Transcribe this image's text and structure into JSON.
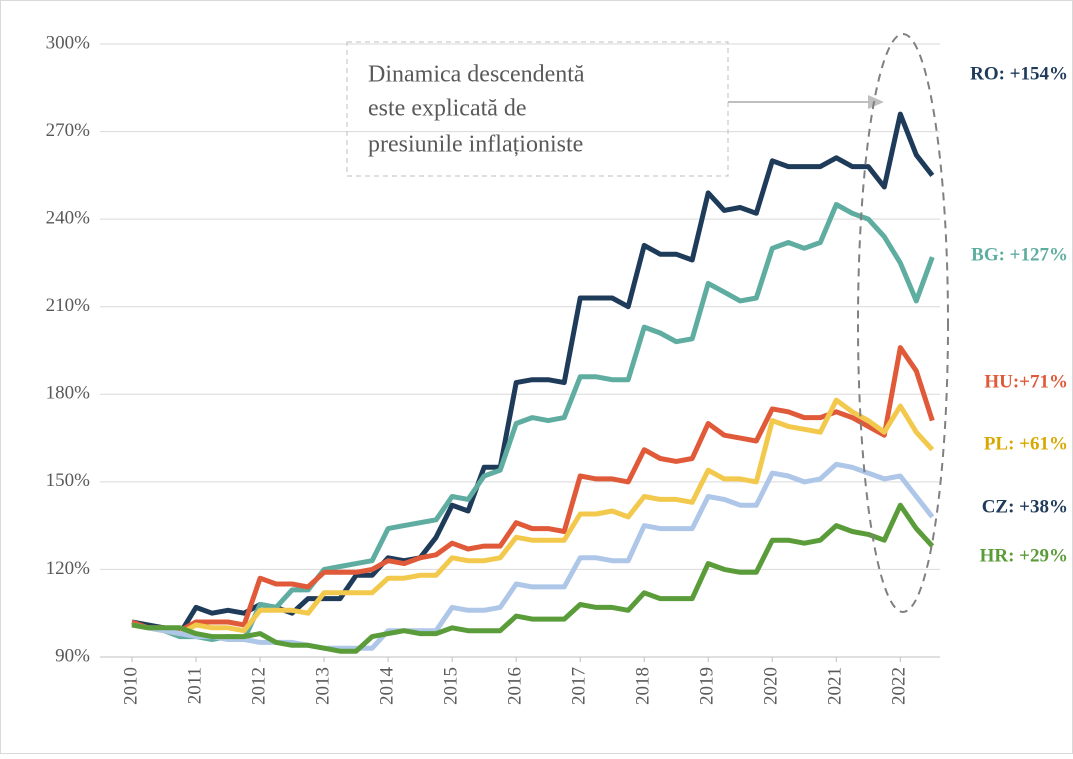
{
  "chart_data": {
    "type": "line",
    "annotation": [
      "Dinamica descendentă",
      "este explicată de",
      "presiunile inflaționiste"
    ],
    "x": [
      2010,
      2010.25,
      2010.5,
      2010.75,
      2011,
      2011.25,
      2011.5,
      2011.75,
      2012,
      2012.25,
      2012.5,
      2012.75,
      2013,
      2013.25,
      2013.5,
      2013.75,
      2014,
      2014.25,
      2014.5,
      2014.75,
      2015,
      2015.25,
      2015.5,
      2015.75,
      2016,
      2016.25,
      2016.5,
      2016.75,
      2017,
      2017.25,
      2017.5,
      2017.75,
      2018,
      2018.25,
      2018.5,
      2018.75,
      2019,
      2019.25,
      2019.5,
      2019.75,
      2020,
      2020.25,
      2020.5,
      2020.75,
      2021,
      2021.25,
      2021.5,
      2021.75,
      2022,
      2022.25,
      2022.5
    ],
    "xlim": [
      2009.5,
      2022.62
    ],
    "xticks": [
      2010,
      2011,
      2012,
      2013,
      2014,
      2015,
      2016,
      2017,
      2018,
      2019,
      2020,
      2021,
      2022
    ],
    "ylim": [
      90,
      300
    ],
    "yticks": [
      {
        "value": 90,
        "label": "90%"
      },
      {
        "value": 120,
        "label": "120%"
      },
      {
        "value": 150,
        "label": "150%"
      },
      {
        "value": 180,
        "label": "180%"
      },
      {
        "value": 210,
        "label": "210%"
      },
      {
        "value": 240,
        "label": "240%"
      },
      {
        "value": 270,
        "label": "270%"
      },
      {
        "value": 300,
        "label": "300%"
      }
    ],
    "grid": true,
    "series": [
      {
        "name": "RO",
        "label": "RO: +154%",
        "color": "#1f3b5a",
        "label_color": "#1f3b5a",
        "values": [
          102,
          101,
          100,
          98,
          107,
          105,
          106,
          105,
          108,
          107,
          105,
          110,
          110,
          110,
          118,
          118,
          124,
          123,
          124,
          131,
          142,
          140,
          155,
          155,
          184,
          185,
          185,
          184,
          213,
          213,
          213,
          210,
          231,
          228,
          228,
          226,
          249,
          243,
          244,
          242,
          260,
          258,
          258,
          258,
          261,
          258,
          258,
          251,
          276,
          262,
          255
        ]
      },
      {
        "name": "BG",
        "label": "BG: +127%",
        "color": "#5fada0",
        "label_color": "#5fada0",
        "values": [
          101,
          100,
          99,
          97,
          97,
          96,
          97,
          96,
          108,
          107,
          113,
          113,
          120,
          121,
          122,
          123,
          134,
          135,
          136,
          137,
          145,
          144,
          152,
          154,
          170,
          172,
          171,
          172,
          186,
          186,
          185,
          185,
          203,
          201,
          198,
          199,
          218,
          215,
          212,
          213,
          230,
          232,
          230,
          232,
          245,
          242,
          240,
          234,
          225,
          212,
          227
        ]
      },
      {
        "name": "HU",
        "label": "HU:+71%",
        "color": "#e05a3a",
        "label_color": "#e05a3a",
        "values": [
          102,
          100,
          100,
          99,
          102,
          102,
          102,
          101,
          117,
          115,
          115,
          114,
          119,
          119,
          119,
          120,
          123,
          122,
          124,
          125,
          129,
          127,
          128,
          128,
          136,
          134,
          134,
          133,
          152,
          151,
          151,
          150,
          161,
          158,
          157,
          158,
          170,
          166,
          165,
          164,
          175,
          174,
          172,
          172,
          174,
          172,
          169,
          166,
          196,
          188,
          171
        ]
      },
      {
        "name": "PL",
        "label": "PL: +61%",
        "color": "#f2c94c",
        "label_color": "#d9a800",
        "values": [
          101,
          100,
          99,
          98,
          101,
          100,
          100,
          99,
          106,
          106,
          106,
          105,
          112,
          112,
          112,
          112,
          117,
          117,
          118,
          118,
          124,
          123,
          123,
          124,
          131,
          130,
          130,
          130,
          139,
          139,
          140,
          138,
          145,
          144,
          144,
          143,
          154,
          151,
          151,
          150,
          171,
          169,
          168,
          167,
          178,
          174,
          171,
          167,
          176,
          167,
          161
        ]
      },
      {
        "name": "CZ",
        "label": "CZ: +38%",
        "color": "#aec6e8",
        "label_color": "#1f3b5a",
        "values": [
          101,
          100,
          99,
          98,
          97,
          97,
          96,
          96,
          95,
          95,
          95,
          94,
          93,
          93,
          93,
          93,
          99,
          99,
          99,
          99,
          107,
          106,
          106,
          107,
          115,
          114,
          114,
          114,
          124,
          124,
          123,
          123,
          135,
          134,
          134,
          134,
          145,
          144,
          142,
          142,
          153,
          152,
          150,
          151,
          156,
          155,
          153,
          151,
          152,
          145,
          138
        ]
      },
      {
        "name": "HR",
        "label": "HR: +29%",
        "color": "#5b9c3a",
        "label_color": "#5b9c3a",
        "values": [
          101,
          100,
          100,
          100,
          98,
          97,
          97,
          97,
          98,
          95,
          94,
          94,
          93,
          92,
          92,
          97,
          98,
          99,
          98,
          98,
          100,
          99,
          99,
          99,
          104,
          103,
          103,
          103,
          108,
          107,
          107,
          106,
          112,
          110,
          110,
          110,
          122,
          120,
          119,
          119,
          130,
          130,
          129,
          130,
          135,
          133,
          132,
          130,
          142,
          134,
          128
        ]
      }
    ]
  }
}
